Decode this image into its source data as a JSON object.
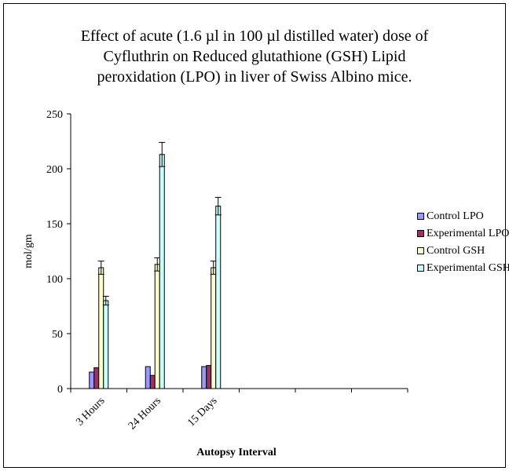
{
  "chart_data": {
    "type": "bar",
    "title_lines": [
      "Effect of acute (1.6 µl in 100 µl distilled water) dose of",
      "Cyfluthrin on Reduced glutathione (GSH) Lipid",
      "peroxidation (LPO) in liver of Swiss Albino mice."
    ],
    "xlabel": "Autopsy Interval",
    "ylabel": "mol/gm",
    "ylim": [
      0,
      250
    ],
    "yticks": [
      0,
      50,
      100,
      150,
      200,
      250
    ],
    "categories": [
      "3 Hours",
      "24 Hours",
      "15 Days",
      "",
      "",
      ""
    ],
    "series": [
      {
        "name": "Control  LPO",
        "color": "#9999FF",
        "values": [
          15,
          20,
          20,
          null,
          null,
          null
        ],
        "errors": [
          0,
          0,
          0,
          null,
          null,
          null
        ]
      },
      {
        "name": "Experimental LPO",
        "color": "#993366",
        "values": [
          19,
          12,
          21,
          null,
          null,
          null
        ],
        "errors": [
          0,
          0,
          0,
          null,
          null,
          null
        ]
      },
      {
        "name": "Control GSH",
        "color": "#FFFFCC",
        "values": [
          110,
          113,
          110,
          null,
          null,
          null
        ],
        "errors": [
          6,
          6,
          6,
          null,
          null,
          null
        ]
      },
      {
        "name": "Experimental GSH",
        "color": "#CCFFFF",
        "values": [
          80,
          213,
          166,
          null,
          null,
          null
        ],
        "errors": [
          4,
          11,
          8,
          null,
          null,
          null
        ]
      }
    ],
    "legend_position": "right",
    "grid": false
  }
}
